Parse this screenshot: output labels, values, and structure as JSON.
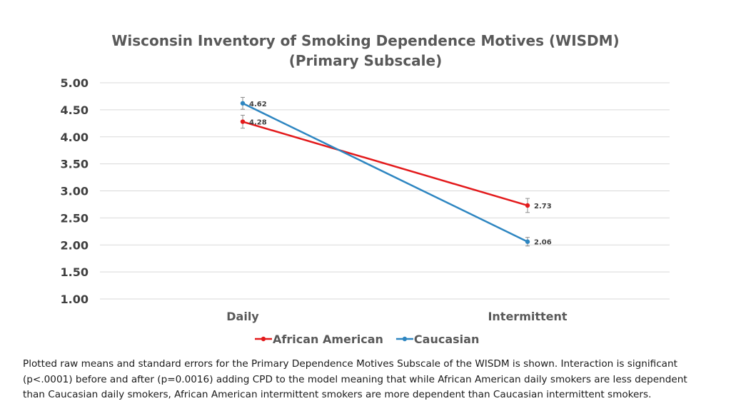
{
  "chart_data": {
    "type": "line",
    "title": "Wisconsin Inventory of Smoking Dependence Motives (WISDM)",
    "subtitle": "(Primary Subscale)",
    "categories": [
      "Daily",
      "Intermittent"
    ],
    "series": [
      {
        "name": "African American",
        "color": "#e31a1c",
        "values": [
          4.28,
          2.73
        ],
        "errors": [
          0.12,
          0.13
        ],
        "labels": [
          "4.28",
          "2.73"
        ]
      },
      {
        "name": "Caucasian",
        "color": "#2e86c1",
        "values": [
          4.62,
          2.06
        ],
        "errors": [
          0.11,
          0.08
        ],
        "labels": [
          "4.62",
          "2.06"
        ]
      }
    ],
    "ylim": [
      1.0,
      5.0
    ],
    "yticks": [
      "5.00",
      "4.50",
      "4.00",
      "3.50",
      "3.00",
      "2.50",
      "2.00",
      "1.50",
      "1.00"
    ],
    "xlabel": "",
    "ylabel": "",
    "grid": true,
    "legend_position": "bottom"
  },
  "caption": "Plotted raw means and standard errors for the Primary Dependence Motives Subscale of the WISDM is shown. Interaction is significant (p<.0001) before and after (p=0.0016) adding CPD to the model meaning that while African American daily smokers are less dependent than Caucasian daily smokers, African American intermittent smokers are more dependent than Caucasian intermittent smokers."
}
